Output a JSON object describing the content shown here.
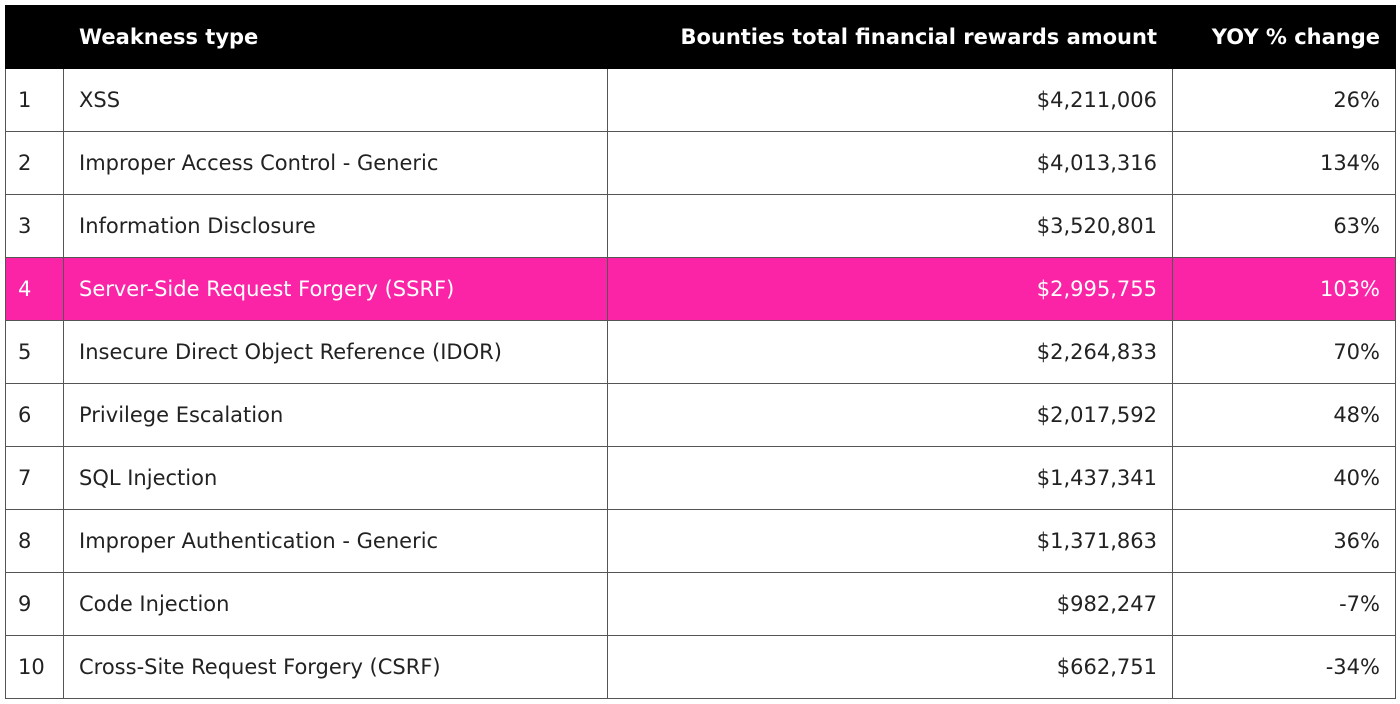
{
  "table": {
    "columns": [
      "Weakness type",
      "Bounties total financial rewards amount",
      "YOY % change"
    ],
    "rows": [
      [
        "1",
        "XSS",
        "$4,211,006",
        "26%"
      ],
      [
        "2",
        "Improper Access Control - Generic",
        "$4,013,316",
        "134%"
      ],
      [
        "3",
        "Information Disclosure",
        "$3,520,801",
        "63%"
      ],
      [
        "4",
        "Server-Side Request Forgery (SSRF)",
        "$2,995,755",
        "103%"
      ],
      [
        "5",
        "Insecure Direct Object Reference (IDOR)",
        "$2,264,833",
        "70%"
      ],
      [
        "6",
        "Privilege Escalation",
        "$2,017,592",
        "48%"
      ],
      [
        "7",
        "SQL Injection",
        "$1,437,341",
        "40%"
      ],
      [
        "8",
        "Improper Authentication - Generic",
        "$1,371,863",
        "36%"
      ],
      [
        "9",
        "Code Injection",
        "$982,247",
        "-7%"
      ],
      [
        "10",
        "Cross-Site Request Forgery (CSRF)",
        "$662,751",
        "-34%"
      ]
    ]
  }
}
